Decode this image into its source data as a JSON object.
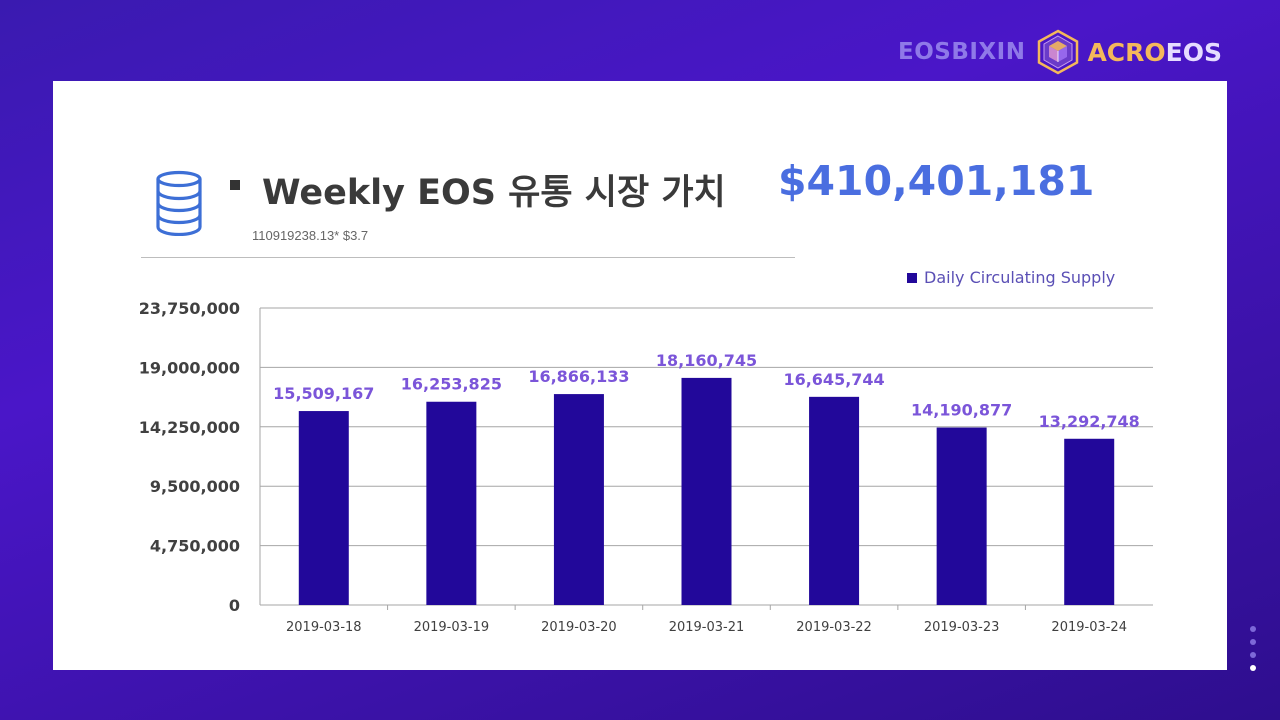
{
  "brand": {
    "left_text": "EOSBIXIN",
    "right_text_accent": "ACRO",
    "right_text_rest": "EOS",
    "logo_icon": "hexagon-cube-logo-icon"
  },
  "header": {
    "icon": "database-icon",
    "title": "Weekly EOS 유통 시장 가치",
    "total_value": "$410,401,181",
    "formula": "110919238.13* $3.7"
  },
  "colors": {
    "bar": "#22089a",
    "value_label": "#7b55d9",
    "total": "#4a6ee0"
  },
  "chart_data": {
    "type": "bar",
    "categories": [
      "2019-03-18",
      "2019-03-19",
      "2019-03-20",
      "2019-03-21",
      "2019-03-22",
      "2019-03-23",
      "2019-03-24"
    ],
    "series": [
      {
        "name": "Daily Circulating Supply",
        "values": [
          15509167,
          16253825,
          16866133,
          18160745,
          16645744,
          14190877,
          13292748
        ],
        "labels": [
          "15,509,167",
          "16,253,825",
          "16,866,133",
          "18,160,745",
          "16,645,744",
          "14,190,877",
          "13,292,748"
        ]
      }
    ],
    "y_ticks": [
      0,
      4750000,
      9500000,
      14250000,
      19000000,
      23750000
    ],
    "y_tick_labels": [
      "0",
      "4,750,000",
      "9,500,000",
      "14,250,000",
      "19,000,000",
      "23,750,000"
    ],
    "ylim": [
      0,
      23750000
    ],
    "grid": true,
    "legend_position": "top-right"
  },
  "pager": {
    "count": 4,
    "active_index": 3
  }
}
